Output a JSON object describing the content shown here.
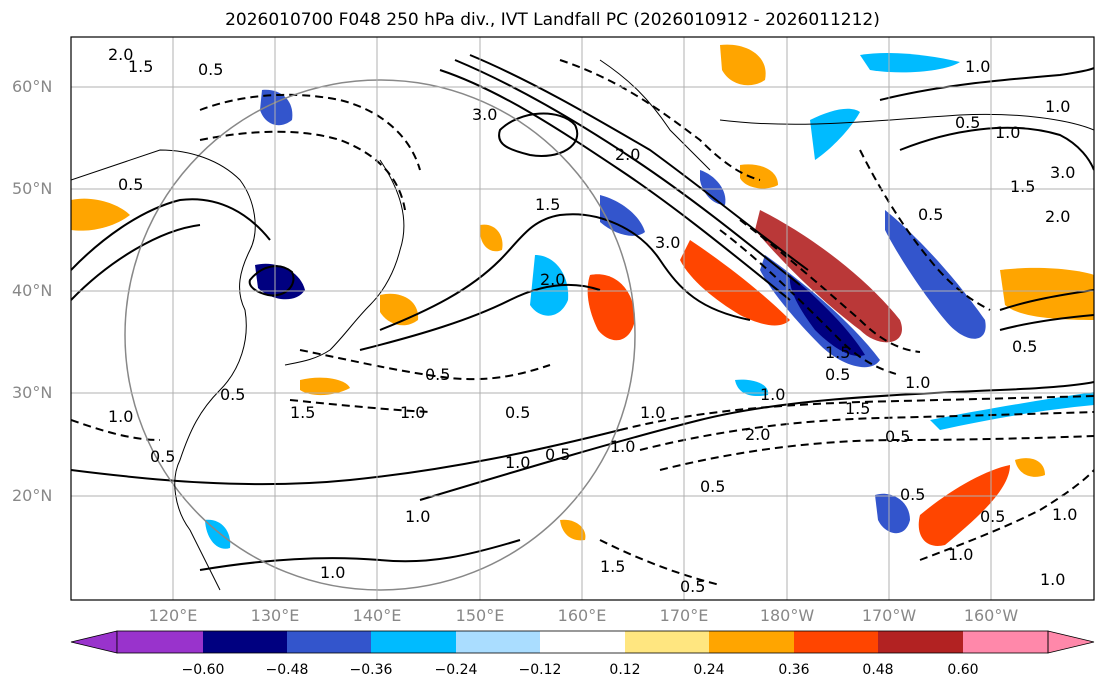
{
  "title": "2026010700 F048 250 hPa div., IVT Landfall PC (2026010912 - 2026011212)",
  "map": {
    "region": "North Pacific / East Asia",
    "lon_range_deg": [
      110,
      210
    ],
    "lat_range_deg": [
      10,
      65
    ],
    "gridlines": true,
    "lat_labels": [
      "60°N",
      "50°N",
      "40°N",
      "30°N",
      "20°N"
    ],
    "lon_labels": [
      "120°E",
      "130°E",
      "140°E",
      "150°E",
      "160°E",
      "170°E",
      "180°W",
      "170°W",
      "160°W"
    ],
    "contour_labels": [
      "2.0",
      "1.5",
      "0.5",
      "0.5",
      "3.0",
      "2.0",
      "1.0",
      "1.0",
      "0.5",
      "1.0",
      "1.5",
      "2.0",
      "3.0",
      "0.5",
      "1.5",
      "3.0",
      "2.0",
      "0.5",
      "1.5",
      "1.0",
      "0.5",
      "1.0",
      "1.5",
      "1.0",
      "0.5",
      "1.0",
      "2.0",
      "0.5",
      "0.5",
      "1.0",
      "0.5",
      "1.0",
      "1.0",
      "0.5",
      "1.0",
      "1.5",
      "0.5",
      "1.0",
      "0.5",
      "1.5",
      "0.5",
      "1.0",
      "1.0",
      "0.5",
      "1.0",
      "0.5"
    ]
  },
  "colorbar": {
    "ticks": [
      "−0.60",
      "−0.48",
      "−0.36",
      "−0.24",
      "−0.12",
      "0.12",
      "0.24",
      "0.36",
      "0.48",
      "0.60"
    ],
    "colors": [
      "#9933cc",
      "#000080",
      "#3355cc",
      "#00bbff",
      "#aaddff",
      "#ffffff",
      "#ffe680",
      "#ffa500",
      "#ff4500",
      "#b22222",
      "#ff88aa"
    ]
  }
}
